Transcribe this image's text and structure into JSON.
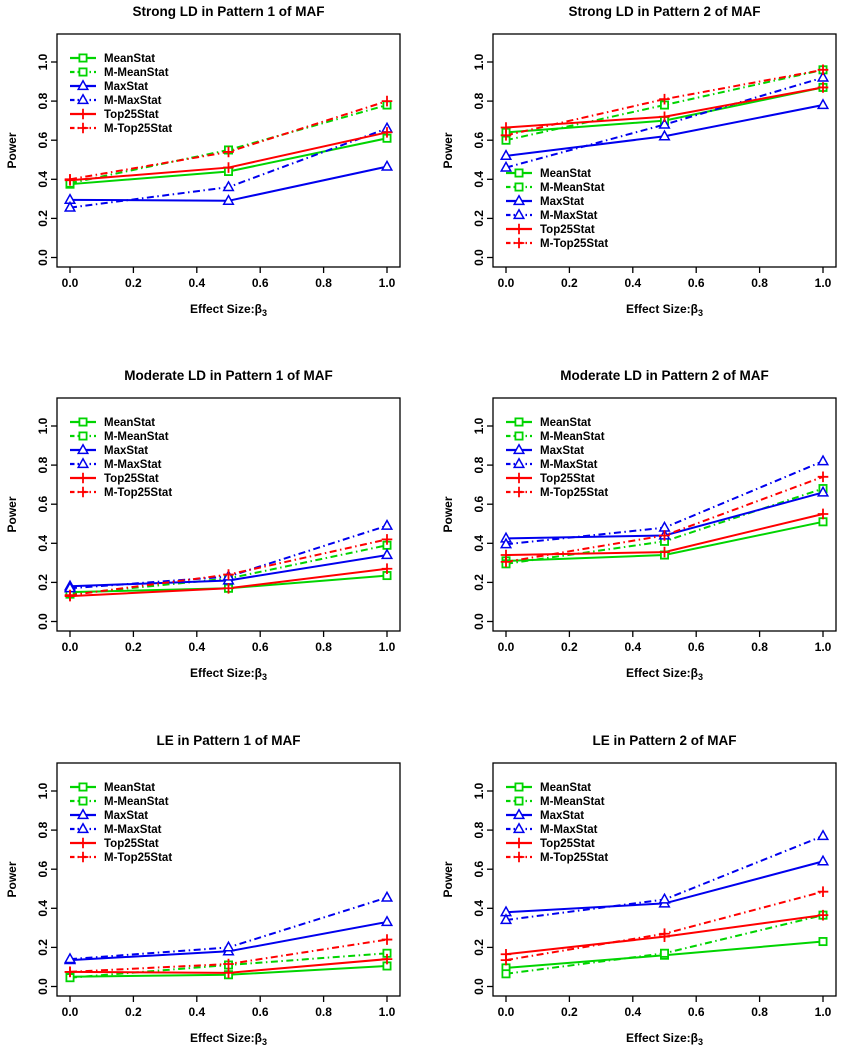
{
  "figure": {
    "name": "power-comparison-figure",
    "background": "#ffffff",
    "accent_colors": {
      "green": "#00D400",
      "blue": "#0000EE",
      "red": "#FF0000"
    }
  },
  "chart_data": [
    {
      "type": "line",
      "title": "Strong LD in Pattern 1 of MAF",
      "xlabel_main": "Effect Size:β",
      "xlabel_sub": "3",
      "ylabel": "Power",
      "x": [
        0.0,
        0.5,
        1.0
      ],
      "xticks": [
        "0.0",
        "0.2",
        "0.4",
        "0.6",
        "0.8",
        "1.0"
      ],
      "yticks": [
        "0.0",
        "0.2",
        "0.4",
        "0.6",
        "0.8",
        "1.0"
      ],
      "xlim": [
        0.0,
        1.0
      ],
      "ylim": [
        0.0,
        1.1
      ],
      "grid": false,
      "legend_position": "top-left",
      "series": [
        {
          "name": "MeanStat",
          "color": "#00D400",
          "line": "solid",
          "marker": "square",
          "values": [
            0.375,
            0.44,
            0.61
          ]
        },
        {
          "name": "M-MeanStat",
          "color": "#00D400",
          "line": "dotdash",
          "marker": "square",
          "values": [
            0.38,
            0.55,
            0.78
          ]
        },
        {
          "name": "MaxStat",
          "color": "#0000EE",
          "line": "solid",
          "marker": "triangle",
          "values": [
            0.295,
            0.29,
            0.465
          ]
        },
        {
          "name": "M-MaxStat",
          "color": "#0000EE",
          "line": "dotdash",
          "marker": "triangle",
          "values": [
            0.255,
            0.36,
            0.66
          ]
        },
        {
          "name": "Top25Stat",
          "color": "#FF0000",
          "line": "solid",
          "marker": "plus",
          "values": [
            0.395,
            0.46,
            0.64
          ]
        },
        {
          "name": "M-Top25Stat",
          "color": "#FF0000",
          "line": "dotdash",
          "marker": "plus",
          "values": [
            0.4,
            0.54,
            0.8
          ]
        }
      ]
    },
    {
      "type": "line",
      "title": "Strong LD in Pattern 2 of MAF",
      "xlabel_main": "Effect Size:β",
      "xlabel_sub": "3",
      "ylabel": "Power",
      "x": [
        0.0,
        0.5,
        1.0
      ],
      "xticks": [
        "0.0",
        "0.2",
        "0.4",
        "0.6",
        "0.8",
        "1.0"
      ],
      "yticks": [
        "0.0",
        "0.2",
        "0.4",
        "0.6",
        "0.8",
        "1.0"
      ],
      "xlim": [
        0.0,
        1.0
      ],
      "ylim": [
        0.0,
        1.1
      ],
      "grid": false,
      "legend_position": "left-middle",
      "series": [
        {
          "name": "MeanStat",
          "color": "#00D400",
          "line": "solid",
          "marker": "square",
          "values": [
            0.64,
            0.7,
            0.87
          ]
        },
        {
          "name": "M-MeanStat",
          "color": "#00D400",
          "line": "dotdash",
          "marker": "square",
          "values": [
            0.6,
            0.78,
            0.96
          ]
        },
        {
          "name": "MaxStat",
          "color": "#0000EE",
          "line": "solid",
          "marker": "triangle",
          "values": [
            0.52,
            0.62,
            0.78
          ]
        },
        {
          "name": "M-MaxStat",
          "color": "#0000EE",
          "line": "dotdash",
          "marker": "triangle",
          "values": [
            0.46,
            0.68,
            0.92
          ]
        },
        {
          "name": "Top25Stat",
          "color": "#FF0000",
          "line": "solid",
          "marker": "plus",
          "values": [
            0.665,
            0.72,
            0.87
          ]
        },
        {
          "name": "M-Top25Stat",
          "color": "#FF0000",
          "line": "dotdash",
          "marker": "plus",
          "values": [
            0.625,
            0.81,
            0.96
          ]
        }
      ]
    },
    {
      "type": "line",
      "title": "Moderate LD in Pattern 1 of MAF",
      "xlabel_main": "Effect Size:β",
      "xlabel_sub": "3",
      "ylabel": "Power",
      "x": [
        0.0,
        0.5,
        1.0
      ],
      "xticks": [
        "0.0",
        "0.2",
        "0.4",
        "0.6",
        "0.8",
        "1.0"
      ],
      "yticks": [
        "0.0",
        "0.2",
        "0.4",
        "0.6",
        "0.8",
        "1.0"
      ],
      "xlim": [
        0.0,
        1.0
      ],
      "ylim": [
        0.0,
        1.1
      ],
      "grid": false,
      "legend_position": "top-left",
      "series": [
        {
          "name": "MeanStat",
          "color": "#00D400",
          "line": "solid",
          "marker": "square",
          "values": [
            0.15,
            0.17,
            0.235
          ]
        },
        {
          "name": "M-MeanStat",
          "color": "#00D400",
          "line": "dotdash",
          "marker": "square",
          "values": [
            0.14,
            0.22,
            0.39
          ]
        },
        {
          "name": "MaxStat",
          "color": "#0000EE",
          "line": "solid",
          "marker": "triangle",
          "values": [
            0.18,
            0.21,
            0.34
          ]
        },
        {
          "name": "M-MaxStat",
          "color": "#0000EE",
          "line": "dotdash",
          "marker": "triangle",
          "values": [
            0.17,
            0.23,
            0.49
          ]
        },
        {
          "name": "Top25Stat",
          "color": "#FF0000",
          "line": "solid",
          "marker": "plus",
          "values": [
            0.13,
            0.17,
            0.27
          ]
        },
        {
          "name": "M-Top25Stat",
          "color": "#FF0000",
          "line": "dotdash",
          "marker": "plus",
          "values": [
            0.135,
            0.24,
            0.42
          ]
        }
      ]
    },
    {
      "type": "line",
      "title": "Moderate LD in Pattern 2 of MAF",
      "xlabel_main": "Effect Size:β",
      "xlabel_sub": "3",
      "ylabel": "Power",
      "x": [
        0.0,
        0.5,
        1.0
      ],
      "xticks": [
        "0.0",
        "0.2",
        "0.4",
        "0.6",
        "0.8",
        "1.0"
      ],
      "yticks": [
        "0.0",
        "0.2",
        "0.4",
        "0.6",
        "0.8",
        "1.0"
      ],
      "xlim": [
        0.0,
        1.0
      ],
      "ylim": [
        0.0,
        1.1
      ],
      "grid": false,
      "legend_position": "top-left",
      "series": [
        {
          "name": "MeanStat",
          "color": "#00D400",
          "line": "solid",
          "marker": "square",
          "values": [
            0.31,
            0.34,
            0.51
          ]
        },
        {
          "name": "M-MeanStat",
          "color": "#00D400",
          "line": "dotdash",
          "marker": "square",
          "values": [
            0.295,
            0.41,
            0.68
          ]
        },
        {
          "name": "MaxStat",
          "color": "#0000EE",
          "line": "solid",
          "marker": "triangle",
          "values": [
            0.425,
            0.44,
            0.66
          ]
        },
        {
          "name": "M-MaxStat",
          "color": "#0000EE",
          "line": "dotdash",
          "marker": "triangle",
          "values": [
            0.395,
            0.48,
            0.82
          ]
        },
        {
          "name": "Top25Stat",
          "color": "#FF0000",
          "line": "solid",
          "marker": "plus",
          "values": [
            0.34,
            0.355,
            0.55
          ]
        },
        {
          "name": "M-Top25Stat",
          "color": "#FF0000",
          "line": "dotdash",
          "marker": "plus",
          "values": [
            0.305,
            0.44,
            0.74
          ]
        }
      ]
    },
    {
      "type": "line",
      "title": "LE in Pattern 1 of MAF",
      "xlabel_main": "Effect Size:β",
      "xlabel_sub": "3",
      "ylabel": "Power",
      "x": [
        0.0,
        0.5,
        1.0
      ],
      "xticks": [
        "0.0",
        "0.2",
        "0.4",
        "0.6",
        "0.8",
        "1.0"
      ],
      "yticks": [
        "0.0",
        "0.2",
        "0.4",
        "0.6",
        "0.8",
        "1.0"
      ],
      "xlim": [
        0.0,
        1.0
      ],
      "ylim": [
        0.0,
        1.1
      ],
      "grid": false,
      "legend_position": "top-left",
      "series": [
        {
          "name": "MeanStat",
          "color": "#00D400",
          "line": "solid",
          "marker": "square",
          "values": [
            0.05,
            0.06,
            0.105
          ]
        },
        {
          "name": "M-MeanStat",
          "color": "#00D400",
          "line": "dotdash",
          "marker": "square",
          "values": [
            0.045,
            0.11,
            0.17
          ]
        },
        {
          "name": "MaxStat",
          "color": "#0000EE",
          "line": "solid",
          "marker": "triangle",
          "values": [
            0.135,
            0.18,
            0.33
          ]
        },
        {
          "name": "M-MaxStat",
          "color": "#0000EE",
          "line": "dotdash",
          "marker": "triangle",
          "values": [
            0.14,
            0.2,
            0.455
          ]
        },
        {
          "name": "Top25Stat",
          "color": "#FF0000",
          "line": "solid",
          "marker": "plus",
          "values": [
            0.075,
            0.07,
            0.14
          ]
        },
        {
          "name": "M-Top25Stat",
          "color": "#FF0000",
          "line": "dotdash",
          "marker": "plus",
          "values": [
            0.075,
            0.115,
            0.24
          ]
        }
      ]
    },
    {
      "type": "line",
      "title": "LE in Pattern 2 of MAF",
      "xlabel_main": "Effect Size:β",
      "xlabel_sub": "3",
      "ylabel": "Power",
      "x": [
        0.0,
        0.5,
        1.0
      ],
      "xticks": [
        "0.0",
        "0.2",
        "0.4",
        "0.6",
        "0.8",
        "1.0"
      ],
      "yticks": [
        "0.0",
        "0.2",
        "0.4",
        "0.6",
        "0.8",
        "1.0"
      ],
      "xlim": [
        0.0,
        1.0
      ],
      "ylim": [
        0.0,
        1.1
      ],
      "grid": false,
      "legend_position": "top-left",
      "series": [
        {
          "name": "MeanStat",
          "color": "#00D400",
          "line": "solid",
          "marker": "square",
          "values": [
            0.095,
            0.16,
            0.23
          ]
        },
        {
          "name": "M-MeanStat",
          "color": "#00D400",
          "line": "dotdash",
          "marker": "square",
          "values": [
            0.065,
            0.17,
            0.365
          ]
        },
        {
          "name": "MaxStat",
          "color": "#0000EE",
          "line": "solid",
          "marker": "triangle",
          "values": [
            0.38,
            0.425,
            0.64
          ]
        },
        {
          "name": "M-MaxStat",
          "color": "#0000EE",
          "line": "dotdash",
          "marker": "triangle",
          "values": [
            0.34,
            0.445,
            0.77
          ]
        },
        {
          "name": "Top25Stat",
          "color": "#FF0000",
          "line": "solid",
          "marker": "plus",
          "values": [
            0.165,
            0.255,
            0.365
          ]
        },
        {
          "name": "M-Top25Stat",
          "color": "#FF0000",
          "line": "dotdash",
          "marker": "plus",
          "values": [
            0.135,
            0.27,
            0.485
          ]
        }
      ]
    }
  ]
}
